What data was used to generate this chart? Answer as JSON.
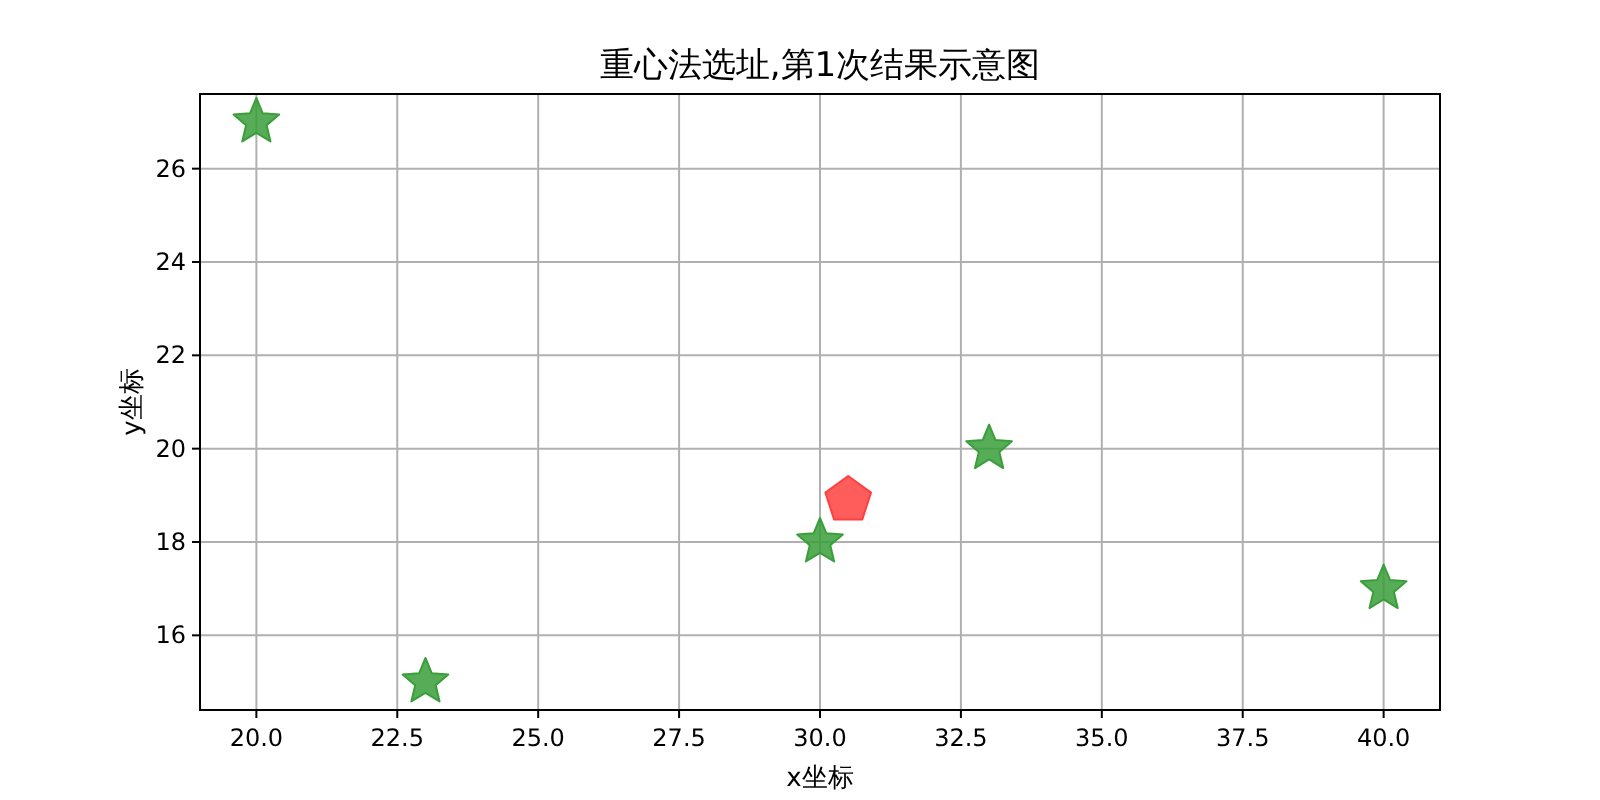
{
  "chart_data": {
    "type": "scatter",
    "title": "重心法选址,第1次结果示意图",
    "xlabel": "x坐标",
    "ylabel": "y坐标",
    "xlim": [
      19,
      41
    ],
    "ylim": [
      14.4,
      27.6
    ],
    "xticks": [
      {
        "value": 20,
        "label": "20.0"
      },
      {
        "value": 22.5,
        "label": "22.5"
      },
      {
        "value": 25,
        "label": "25.0"
      },
      {
        "value": 27.5,
        "label": "27.5"
      },
      {
        "value": 30,
        "label": "30.0"
      },
      {
        "value": 32.5,
        "label": "32.5"
      },
      {
        "value": 35,
        "label": "35.0"
      },
      {
        "value": 37.5,
        "label": "37.5"
      },
      {
        "value": 40,
        "label": "40.0"
      }
    ],
    "yticks": [
      16,
      18,
      20,
      22,
      24,
      26
    ],
    "grid": true,
    "series": [
      {
        "color": "#3a9e3a",
        "marker": "star",
        "x": [
          20,
          23,
          30,
          33,
          40
        ],
        "values": [
          27,
          15,
          18,
          20,
          17
        ]
      },
      {
        "color": "#ff4040",
        "x": [
          30.5
        ],
        "values": [
          18.9
        ]
      }
    ]
  }
}
